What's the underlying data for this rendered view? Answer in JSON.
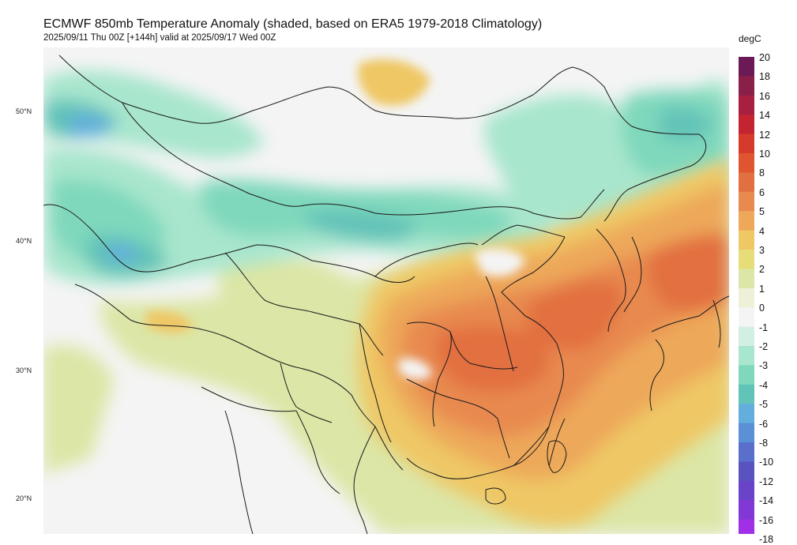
{
  "title": "ECMWF 850mb Temperature Anomaly (shaded, based on ERA5 1979-2018 Climatology)",
  "subtitle": "2025/09/11 Thu 00Z [+144h] valid at 2025/09/17 Wed 00Z",
  "latitude_labels": [
    "50°N",
    "40°N",
    "30°N",
    "20°N"
  ],
  "colorbar": {
    "unit": "degC",
    "ticks": [
      "20",
      "18",
      "16",
      "14",
      "12",
      "10",
      "8",
      "6",
      "5",
      "4",
      "3",
      "2",
      "1",
      "0",
      "-1",
      "-2",
      "-3",
      "-4",
      "-5",
      "-6",
      "-8",
      "-10",
      "-12",
      "-14",
      "-16",
      "-18"
    ],
    "colors": [
      "#6b1a55",
      "#8a1f4a",
      "#a7203f",
      "#c42432",
      "#d63a2a",
      "#de5530",
      "#e26f3f",
      "#e88a4f",
      "#eda85a",
      "#efc765",
      "#e7dd78",
      "#dce6a6",
      "#eef0d8",
      "#f4f4f4",
      "#d3efe3",
      "#a8e6cd",
      "#7fd8bc",
      "#62c3b8",
      "#64aede",
      "#5b8fd6",
      "#5a6fcb",
      "#5a53bf",
      "#6a44c8",
      "#8138d6",
      "#a030e6",
      "#b928f0"
    ]
  }
}
